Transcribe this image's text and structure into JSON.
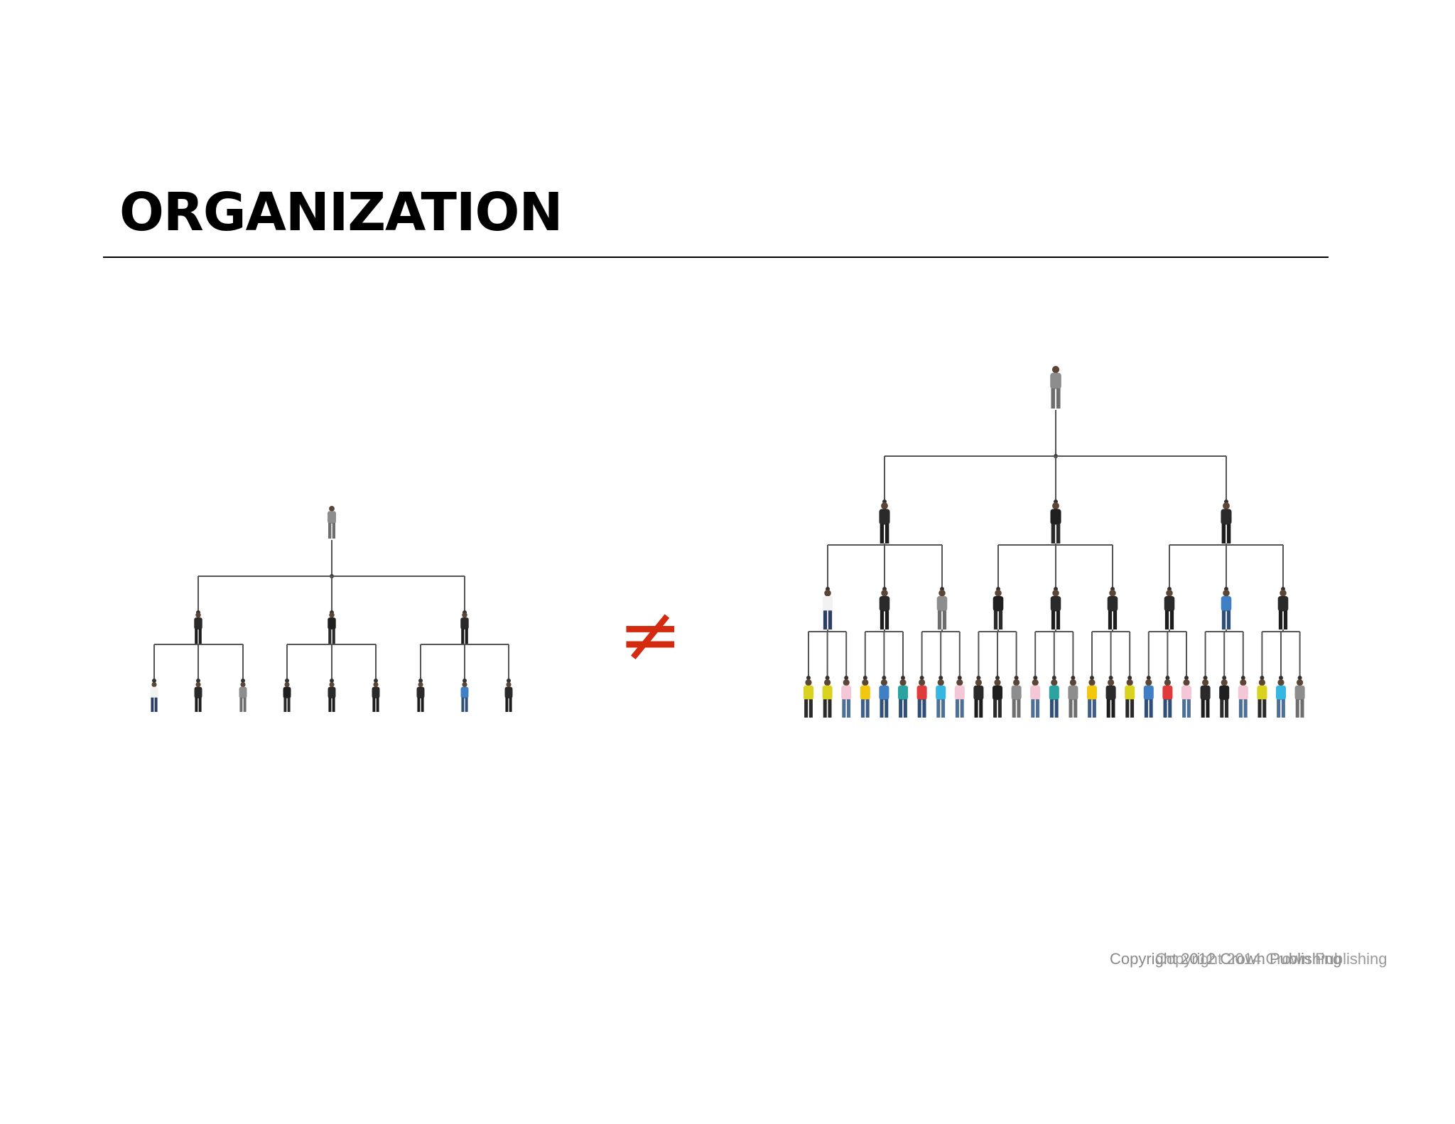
{
  "title": "ORGANIZATION",
  "symbol": "≠",
  "copyright_lines": [
    "Copyright 2012 Crown Publishing",
    "Copyright 2014 Crown Publishing"
  ],
  "colors": {
    "title": "#000000",
    "symbol": "#d42a10",
    "connector": "#555555",
    "copyright": "#8a8a8a"
  },
  "charts": [
    {
      "name": "small-org",
      "levels": [
        1,
        3,
        9
      ],
      "people": [
        [
          "gray-suit"
        ],
        [
          "dark-suit",
          "dark-dress",
          "dark-suit"
        ],
        [
          "white-shirt",
          "dark-suit",
          "gray-suit",
          "dark-dress",
          "dark-suit",
          "dark-suit",
          "dark-suit",
          "blue-shirt",
          "dark-suit"
        ]
      ]
    },
    {
      "name": "large-org",
      "levels": [
        1,
        3,
        9,
        27
      ],
      "people": [
        [
          "gray-suit"
        ],
        [
          "dark-suit",
          "dark-dress",
          "dark-suit"
        ],
        [
          "white-shirt",
          "dark-suit",
          "gray-suit",
          "dark-dress",
          "dark-suit",
          "dark-suit",
          "dark-suit",
          "blue-shirt",
          "dark-suit"
        ],
        [
          "yellow-vest",
          "yellow-vest",
          "pink-shirt",
          "yellow-shirt",
          "blue-shirt",
          "teal-shirt",
          "red-shirt",
          "cyan-shirt",
          "pink-shirt",
          "dark-suit",
          "dark-dress",
          "gray-suit",
          "pink-shirt",
          "teal-shirt",
          "gray-suit",
          "yellow-shirt",
          "dark-suit",
          "yellow-vest",
          "blue-shirt",
          "red-shirt",
          "pink-shirt",
          "dark-suit",
          "dark-dress",
          "pink-shirt",
          "yellow-vest",
          "cyan-shirt",
          "gray-suit"
        ]
      ]
    }
  ]
}
